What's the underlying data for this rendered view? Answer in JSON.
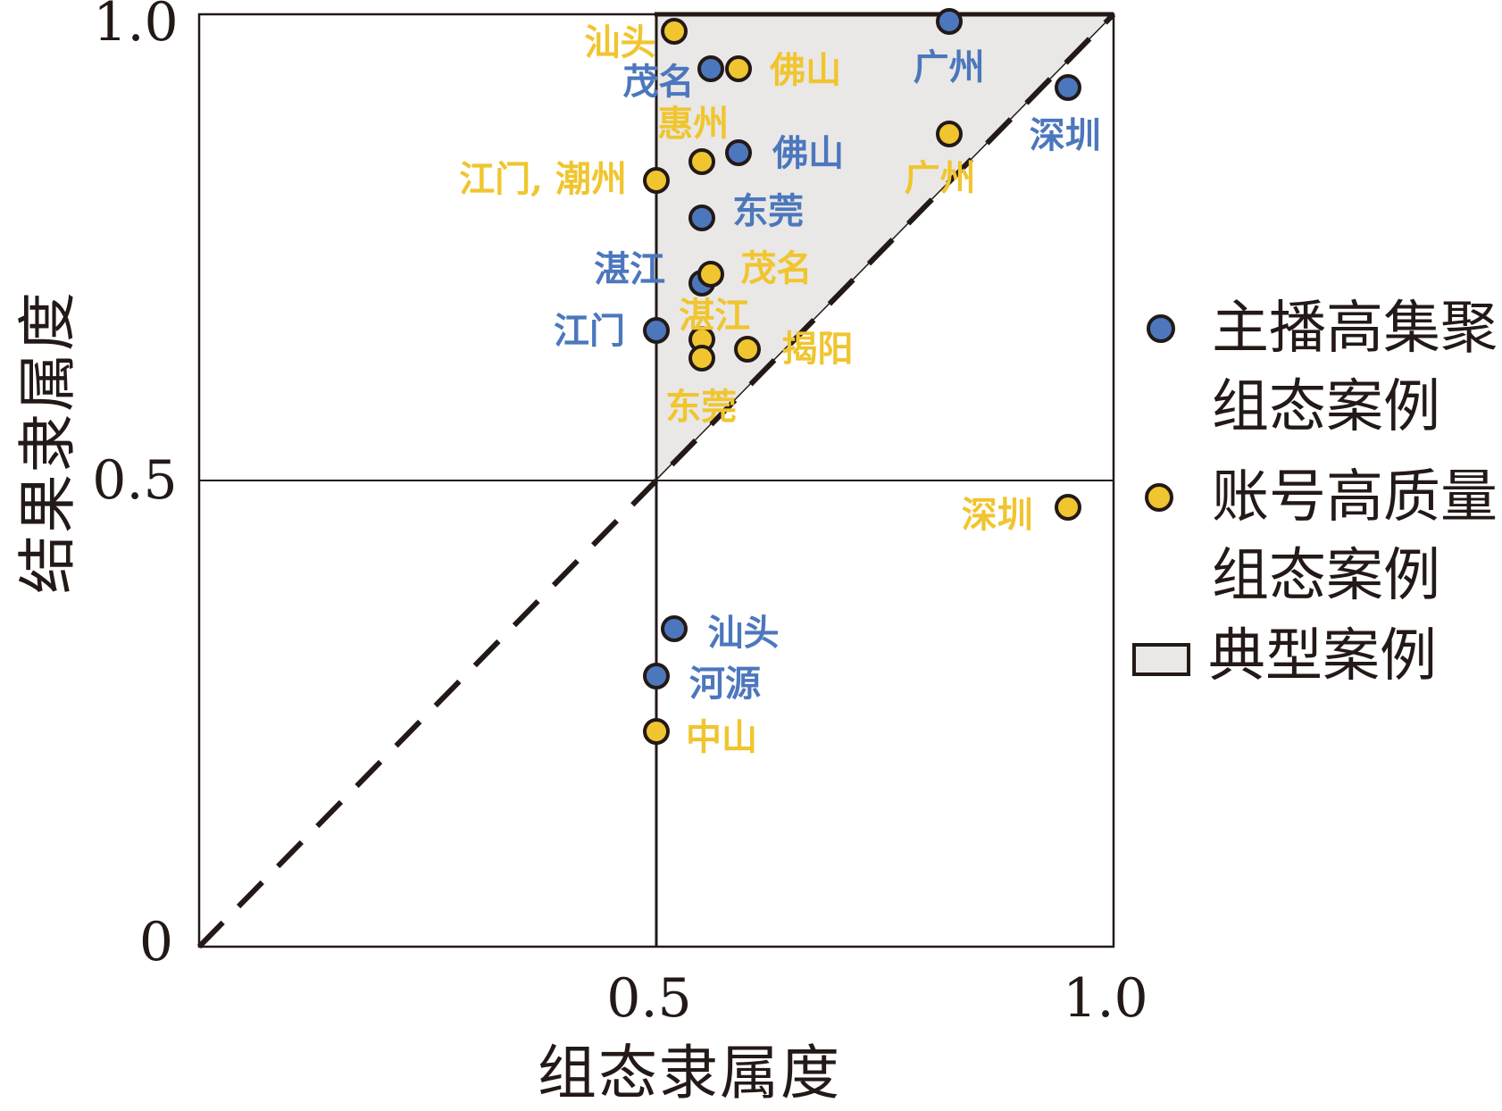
{
  "axes": {
    "x_title": "组态隶属度",
    "y_title": "结果隶属度",
    "x_tick_labels": {
      "t05": "0.5",
      "t10": "1.0"
    },
    "y_tick_labels": {
      "t0": "0",
      "t05": "0.5",
      "t10": "1.0"
    }
  },
  "legend": {
    "items": [
      {
        "icon": "blue-dot",
        "line1": "主播高集聚",
        "line2": "组态案例"
      },
      {
        "icon": "yellow-dot",
        "line1": "账号高质量",
        "line2": "组态案例"
      },
      {
        "icon": "gray-rect",
        "line1": "典型案例",
        "line2": ""
      }
    ]
  },
  "colors": {
    "blue": "#4C77BD",
    "yellow": "#F0C52F",
    "line": "#231916",
    "gray_fill": "#E9E8E6",
    "background": "#FFFFFF"
  },
  "chart_data": {
    "type": "scatter",
    "title": "",
    "xlabel": "组态隶属度",
    "ylabel": "结果隶属度",
    "xlim": [
      0,
      1
    ],
    "ylim": [
      0,
      1
    ],
    "x_ticks": [
      0.5,
      1.0
    ],
    "y_ticks": [
      0,
      0.5,
      1.0
    ],
    "grid": false,
    "legend_position": "right",
    "reference_lines": {
      "vertical_x": 0.5,
      "horizontal_y": 0.5,
      "diagonal": "y=x dashed from (0,0) to (1,1)"
    },
    "shaded_region": {
      "label": "典型案例",
      "vertices_xy": [
        [
          0.5,
          1.0
        ],
        [
          1.0,
          1.0
        ],
        [
          0.5,
          0.5
        ]
      ],
      "fill": "#E9E8E6"
    },
    "series": [
      {
        "name": "主播高集聚组态案例",
        "color": "#4C77BD",
        "points": [
          {
            "label": "广州",
            "x": 0.82,
            "y": 0.99,
            "dx": 0,
            "dy": 48
          },
          {
            "label": "深圳",
            "x": 0.95,
            "y": 0.92,
            "dx": -3,
            "dy": 50
          },
          {
            "label": "茂名",
            "x": 0.56,
            "y": 0.94,
            "dx": -59,
            "dy": 11
          },
          {
            "label": "佛山",
            "x": 0.59,
            "y": 0.85,
            "dx": 78,
            "dy": -3
          },
          {
            "label": "东莞",
            "x": 0.55,
            "y": 0.78,
            "dx": 74,
            "dy": -11
          },
          {
            "label": "湛江",
            "x": 0.55,
            "y": 0.71,
            "dx": -81,
            "dy": -19
          },
          {
            "label": "江门",
            "x": 0.5,
            "y": 0.66,
            "dx": -75,
            "dy": -3
          },
          {
            "label": "汕头",
            "x": 0.52,
            "y": 0.34,
            "dx": 77,
            "dy": 1
          },
          {
            "label": "河源",
            "x": 0.5,
            "y": 0.29,
            "dx": 77,
            "dy": 5
          }
        ]
      },
      {
        "name": "账号高质量组态案例",
        "color": "#F0C52F",
        "points": [
          {
            "label": "汕头",
            "x": 0.52,
            "y": 0.98,
            "dx": -61,
            "dy": 9
          },
          {
            "label": "佛山",
            "x": 0.59,
            "y": 0.94,
            "dx": 75,
            "dy": -2
          },
          {
            "label": "广州",
            "x": 0.82,
            "y": 0.87,
            "dx": -10,
            "dy": 46
          },
          {
            "label": "惠州",
            "x": 0.55,
            "y": 0.84,
            "dx": -10,
            "dy": -46
          },
          {
            "label": "江门, 潮州",
            "x": 0.5,
            "y": 0.82,
            "dx": -127,
            "dy": -5
          },
          {
            "label": "茂名",
            "x": 0.56,
            "y": 0.72,
            "dx": 73,
            "dy": -10
          },
          {
            "label": "湛江",
            "x": 0.55,
            "y": 0.65,
            "dx": 14,
            "dy": -30
          },
          {
            "label": "揭阳",
            "x": 0.6,
            "y": 0.64,
            "dx": 78,
            "dy": -4
          },
          {
            "label": "东莞",
            "x": 0.55,
            "y": 0.63,
            "dx": -1,
            "dy": 51
          },
          {
            "label": "深圳",
            "x": 0.95,
            "y": 0.47,
            "dx": -79,
            "dy": 5
          },
          {
            "label": "中山",
            "x": 0.5,
            "y": 0.23,
            "dx": 73,
            "dy": 3
          }
        ]
      }
    ]
  }
}
